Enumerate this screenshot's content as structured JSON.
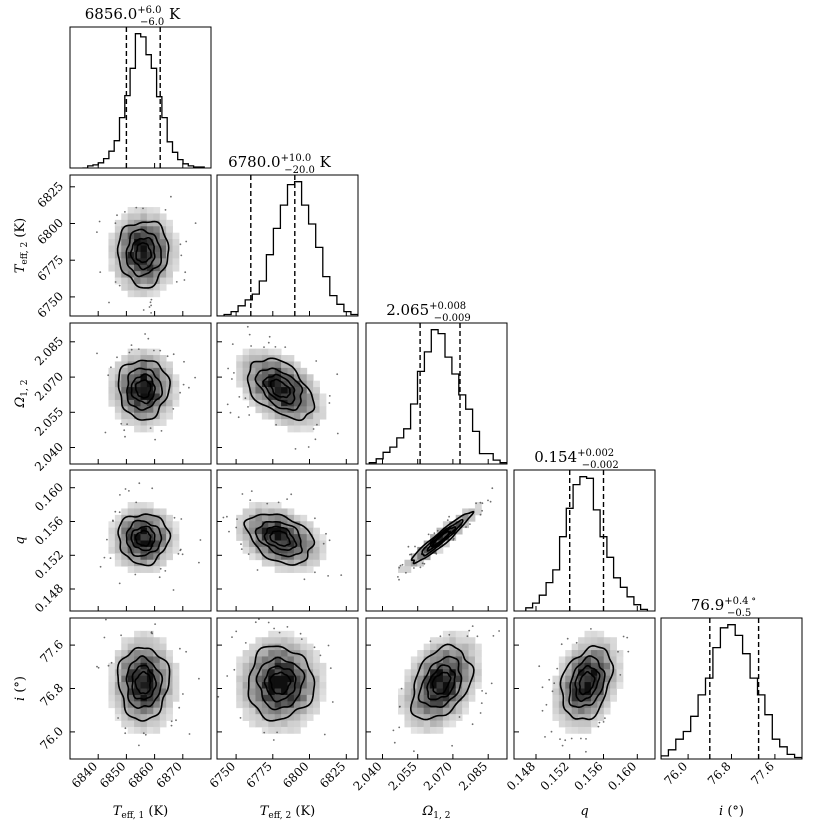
{
  "chart_data": {
    "type": "corner",
    "parameters": [
      {
        "key": "teff1",
        "label_main": "T",
        "label_sub": "eff, 1",
        "label_unit": " (K)",
        "median": 6856.0,
        "err_plus": 6.0,
        "err_minus": 6.0,
        "title": {
          "median": "6856.0",
          "plus": "+6.0",
          "minus": "−6.0",
          "unit": " K"
        },
        "range": [
          6830,
          6880
        ],
        "ticks": [
          6840,
          6850,
          6860,
          6870
        ],
        "tick_labels": [
          "6840",
          "6850",
          "6860",
          "6870"
        ]
      },
      {
        "key": "teff2",
        "label_main": "T",
        "label_sub": "eff, 2",
        "label_unit": " (K)",
        "median": 6780.0,
        "err_plus": 10.0,
        "err_minus": 20.0,
        "title": {
          "median": "6780.0",
          "plus": "+10.0",
          "minus": "−20.0",
          "unit": " K"
        },
        "range": [
          6737,
          6833
        ],
        "ticks": [
          6750,
          6775,
          6800,
          6825
        ],
        "tick_labels": [
          "6750",
          "6775",
          "6800",
          "6825"
        ]
      },
      {
        "key": "omega12",
        "label_main": "Ω",
        "label_sub": "1, 2",
        "label_unit": "",
        "median": 2.065,
        "err_plus": 0.008,
        "err_minus": 0.009,
        "title": {
          "median": "2.065",
          "plus": "+0.008",
          "minus": "−0.009",
          "unit": ""
        },
        "range": [
          2.033,
          2.093
        ],
        "ticks": [
          2.04,
          2.055,
          2.07,
          2.085
        ],
        "tick_labels": [
          "2.040",
          "2.055",
          "2.070",
          "2.085"
        ]
      },
      {
        "key": "q",
        "label_main": "q",
        "label_sub": "",
        "label_unit": "",
        "median": 0.154,
        "err_plus": 0.002,
        "err_minus": 0.002,
        "title": {
          "median": "0.154",
          "plus": "+0.002",
          "minus": "−0.002",
          "unit": ""
        },
        "range": [
          0.1454,
          0.1621
        ],
        "ticks": [
          0.148,
          0.152,
          0.156,
          0.16
        ],
        "tick_labels": [
          "0.148",
          "0.152",
          "0.156",
          "0.160"
        ]
      },
      {
        "key": "incl",
        "label_main": "i",
        "label_sub": "",
        "label_unit": " (°)",
        "median": 76.9,
        "err_plus": 0.4,
        "err_minus": 0.5,
        "title": {
          "median": "76.9",
          "plus": "+0.4",
          "minus": "−0.5",
          "unit": "∘"
        },
        "range": [
          75.5,
          78.1
        ],
        "ticks": [
          76.0,
          76.8,
          77.6
        ],
        "tick_labels": [
          "76.0",
          "76.8",
          "77.6"
        ]
      }
    ],
    "correlations": [
      [
        1,
        0,
        0,
        0,
        0
      ],
      [
        0,
        1,
        -0.45,
        -0.35,
        0
      ],
      [
        0,
        -0.45,
        1,
        0.95,
        0.35
      ],
      [
        0,
        -0.35,
        0.95,
        1,
        0.3
      ],
      [
        0,
        0,
        0.35,
        0.3,
        1
      ]
    ],
    "contour_levels_sigma": [
      0.5,
      1.0,
      1.5,
      2.0
    ],
    "histograms": [
      [
        0,
        2,
        3,
        5,
        9,
        16,
        26,
        48,
        69,
        95,
        128,
        125,
        108,
        95,
        68,
        48,
        25,
        15,
        8,
        4,
        2,
        1,
        1
      ],
      [
        0,
        1,
        3,
        7,
        11,
        15,
        24,
        42,
        60,
        76,
        90,
        92,
        76,
        63,
        47,
        27,
        14,
        8,
        3,
        1
      ],
      [
        1,
        4,
        9,
        13,
        20,
        27,
        46,
        71,
        86,
        103,
        100,
        82,
        69,
        53,
        42,
        25,
        8,
        8,
        3,
        1
      ],
      [
        2,
        5,
        10,
        18,
        26,
        47,
        65,
        80,
        85,
        84,
        64,
        47,
        34,
        21,
        15,
        9,
        4,
        1
      ],
      [
        2,
        6,
        13,
        18,
        28,
        42,
        53,
        73,
        86,
        88,
        81,
        69,
        53,
        42,
        29,
        13,
        8,
        3,
        1
      ]
    ]
  }
}
